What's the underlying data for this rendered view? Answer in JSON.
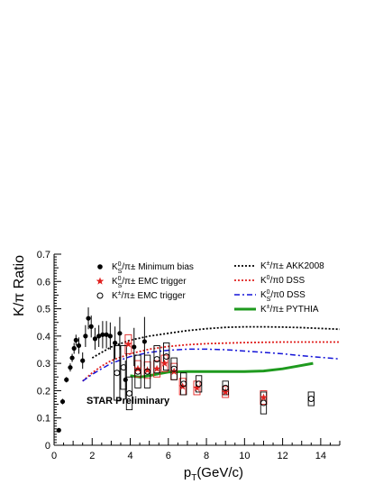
{
  "chart_data": {
    "type": "scatter",
    "title": "",
    "xlabel": {
      "main": "p",
      "sub": "T",
      "rest": "(GeV/c)"
    },
    "ylabel": "K/π Ratio",
    "xlim": [
      0,
      15
    ],
    "ylim": [
      0,
      0.7
    ],
    "x_ticks": [
      0,
      2,
      4,
      6,
      8,
      10,
      12,
      14
    ],
    "y_ticks": [
      0,
      0.1,
      0.2,
      0.3,
      0.4,
      0.5,
      0.6,
      0.7
    ],
    "grid": false,
    "annotation": "STAR Preliminary",
    "legend_left": [
      {
        "label_main": "K",
        "sub": "S",
        "sup": "0",
        "rest": "/π± Minimum bias",
        "marker": "filled-circle",
        "color": "#000000"
      },
      {
        "label_main": "K",
        "sub": "S",
        "sup": "0",
        "rest": "/π± EMC trigger",
        "marker": "star",
        "color": "#e0201e"
      },
      {
        "label_main": "K",
        "sub": "",
        "sup": "±",
        "rest": "/π± EMC trigger",
        "marker": "open-circle",
        "color": "#000000"
      }
    ],
    "legend_right": [
      {
        "label_main": "K",
        "sub": "",
        "sup": "±",
        "rest": "/π± AKK2008",
        "style": "dotted",
        "color": "#000000"
      },
      {
        "label_main": "K",
        "sub": "",
        "sup": "0",
        "rest": "/π0 DSS",
        "style": "dotted",
        "color": "#e0201e"
      },
      {
        "label_main": "K",
        "sub": "S",
        "sup": "0",
        "rest": "/π0 DSS",
        "style": "dashdot",
        "color": "#1414d8"
      },
      {
        "label_main": "K",
        "sub": "",
        "sup": "±",
        "rest": "/π± PYTHIA",
        "style": "solid",
        "color": "#1e9a1e"
      }
    ],
    "series": [
      {
        "name": "K0S/π± Minimum bias",
        "marker": "filled-circle",
        "color": "#000000",
        "points": [
          [
            0.25,
            0.055,
            0.005
          ],
          [
            0.45,
            0.16,
            0.01
          ],
          [
            0.65,
            0.24,
            0.01
          ],
          [
            0.85,
            0.285,
            0.015
          ],
          [
            0.95,
            0.32,
            0.015
          ],
          [
            1.05,
            0.355,
            0.02
          ],
          [
            1.15,
            0.385,
            0.02
          ],
          [
            1.3,
            0.365,
            0.03
          ],
          [
            1.5,
            0.31,
            0.03
          ],
          [
            1.65,
            0.4,
            0.04
          ],
          [
            1.8,
            0.465,
            0.04
          ],
          [
            1.95,
            0.435,
            0.04
          ],
          [
            2.15,
            0.39,
            0.04
          ],
          [
            2.35,
            0.4,
            0.04
          ],
          [
            2.55,
            0.405,
            0.05
          ],
          [
            2.75,
            0.405,
            0.05
          ],
          [
            2.95,
            0.4,
            0.05
          ],
          [
            3.2,
            0.375,
            0.06
          ],
          [
            3.45,
            0.41,
            0.06
          ],
          [
            3.75,
            0.24,
            0.07
          ],
          [
            4.2,
            0.36,
            0.07
          ],
          [
            4.75,
            0.38,
            0.09
          ]
        ]
      },
      {
        "name": "K0S/π± EMC trigger",
        "marker": "star",
        "color": "#e0201e",
        "points": [
          [
            3.9,
            0.37,
            0.035
          ],
          [
            4.4,
            0.28,
            0.03
          ],
          [
            4.9,
            0.275,
            0.03
          ],
          [
            5.4,
            0.28,
            0.03
          ],
          [
            5.8,
            0.3,
            0.03
          ],
          [
            6.3,
            0.27,
            0.03
          ],
          [
            6.75,
            0.215,
            0.03
          ],
          [
            7.5,
            0.21,
            0.025
          ],
          [
            9.0,
            0.195,
            0.02
          ],
          [
            11.0,
            0.175,
            0.025
          ]
        ]
      },
      {
        "name": "K±/π± EMC trigger",
        "marker": "open-circle",
        "color": "#000000",
        "points": [
          [
            3.3,
            0.265,
            0.1
          ],
          [
            3.65,
            0.285,
            0.08
          ],
          [
            3.95,
            0.19,
            0.06
          ],
          [
            4.4,
            0.27,
            0.06
          ],
          [
            4.9,
            0.27,
            0.06
          ],
          [
            5.4,
            0.315,
            0.05
          ],
          [
            5.9,
            0.325,
            0.05
          ],
          [
            6.3,
            0.28,
            0.04
          ],
          [
            6.8,
            0.225,
            0.04
          ],
          [
            7.6,
            0.225,
            0.03
          ],
          [
            9.0,
            0.21,
            0.025
          ],
          [
            11.0,
            0.155,
            0.04
          ],
          [
            13.5,
            0.17,
            0.025
          ]
        ]
      }
    ],
    "curves": [
      {
        "name": "K±/π± AKK2008",
        "style": "dotted",
        "color": "#000000",
        "points": [
          [
            2,
            0.32
          ],
          [
            2.5,
            0.34
          ],
          [
            3,
            0.36
          ],
          [
            4,
            0.385
          ],
          [
            5,
            0.4
          ],
          [
            6,
            0.41
          ],
          [
            7,
            0.42
          ],
          [
            8,
            0.427
          ],
          [
            9,
            0.432
          ],
          [
            10,
            0.434
          ],
          [
            11,
            0.434
          ],
          [
            12,
            0.433
          ],
          [
            13,
            0.431
          ],
          [
            14,
            0.428
          ],
          [
            15,
            0.425
          ]
        ]
      },
      {
        "name": "K0/π0 DSS",
        "style": "dotted",
        "color": "#e0201e",
        "points": [
          [
            1.5,
            0.235
          ],
          [
            2,
            0.265
          ],
          [
            2.5,
            0.29
          ],
          [
            3,
            0.31
          ],
          [
            4,
            0.335
          ],
          [
            5,
            0.352
          ],
          [
            6,
            0.362
          ],
          [
            7,
            0.368
          ],
          [
            8,
            0.372
          ],
          [
            10,
            0.376
          ],
          [
            12,
            0.378
          ],
          [
            14,
            0.378
          ],
          [
            15,
            0.378
          ]
        ]
      },
      {
        "name": "K0S/π0 DSS",
        "style": "dashdot",
        "color": "#1414d8",
        "points": [
          [
            1.5,
            0.235
          ],
          [
            2,
            0.26
          ],
          [
            2.5,
            0.28
          ],
          [
            3,
            0.3
          ],
          [
            4,
            0.325
          ],
          [
            5,
            0.34
          ],
          [
            6,
            0.348
          ],
          [
            7,
            0.352
          ],
          [
            8,
            0.352
          ],
          [
            9,
            0.35
          ],
          [
            10,
            0.345
          ],
          [
            11,
            0.34
          ],
          [
            12,
            0.335
          ],
          [
            13,
            0.328
          ],
          [
            14,
            0.322
          ],
          [
            15,
            0.316
          ]
        ]
      },
      {
        "name": "K±/π± PYTHIA",
        "style": "solid",
        "color": "#1e9a1e",
        "points": [
          [
            4,
            0.255
          ],
          [
            4.5,
            0.25
          ],
          [
            5,
            0.255
          ],
          [
            5.5,
            0.262
          ],
          [
            6,
            0.268
          ],
          [
            7,
            0.27
          ],
          [
            8,
            0.27
          ],
          [
            9,
            0.27
          ],
          [
            10,
            0.27
          ],
          [
            11,
            0.272
          ],
          [
            12,
            0.28
          ],
          [
            12.8,
            0.29
          ],
          [
            13.6,
            0.3
          ]
        ]
      }
    ]
  }
}
